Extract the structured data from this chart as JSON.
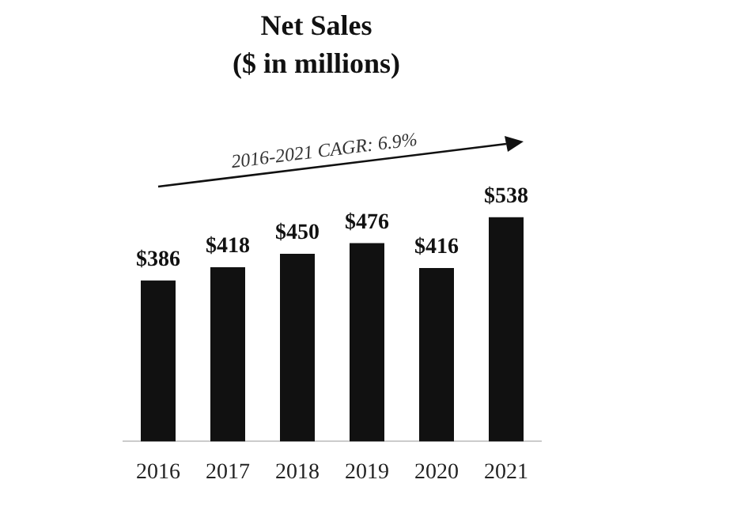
{
  "chart_data": {
    "type": "bar",
    "title": "Net Sales",
    "subtitle": "($ in millions)",
    "categories": [
      "2016",
      "2017",
      "2018",
      "2019",
      "2020",
      "2021"
    ],
    "values": [
      386,
      418,
      450,
      476,
      416,
      538
    ],
    "value_labels": [
      "$386",
      "$418",
      "$450",
      "$476",
      "$416",
      "$538"
    ],
    "color": "#111111",
    "annotations": [
      "2016-2021 CAGR: 6.9%"
    ]
  }
}
